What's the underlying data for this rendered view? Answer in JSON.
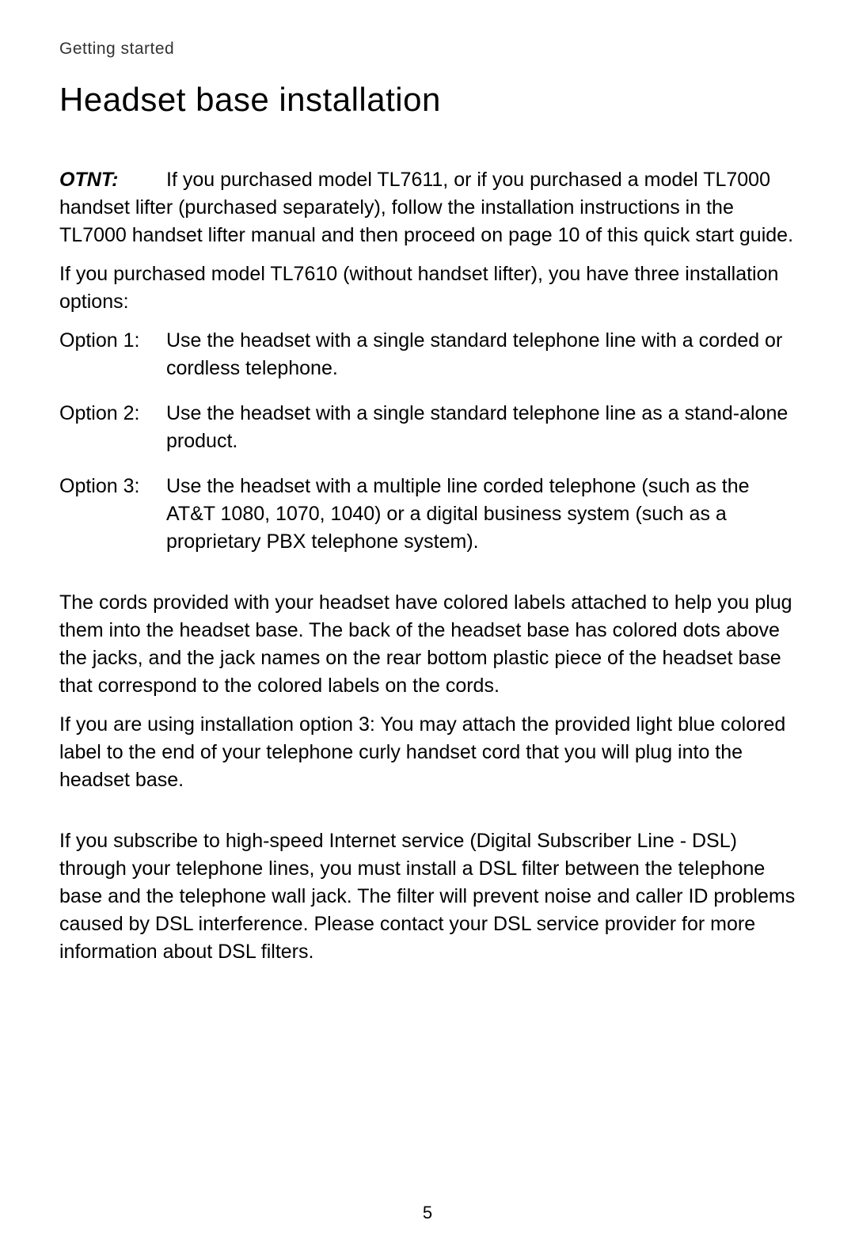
{
  "breadcrumb": "Getting started",
  "title": "Headset base installation",
  "note": {
    "label": "OTNT:",
    "text": "If you purchased model TL7611, or if you purchased a model TL7000 handset lifter (purchased separately), follow the installation instructions in the TL7000 handset lifter manual and then proceed on page 10 of this quick start guide."
  },
  "intro_paragraph": "If you purchased model TL7610 (without handset lifter), you have three installation options:",
  "options": [
    {
      "label": "Option 1:",
      "text": "Use the headset with a single standard telephone line with a corded or cordless telephone."
    },
    {
      "label": "Option 2:",
      "text": "Use the headset with a single standard telephone line as a stand-alone product."
    },
    {
      "label": "Option 3:",
      "text": "Use the headset with a multiple line corded telephone (such as the AT&T 1080, 1070, 1040) or a digital business system (such as a proprietary PBX telephone system)."
    }
  ],
  "cords_paragraph": "The cords provided with your headset have colored labels attached to help you plug them into the headset base. The back of the headset base has colored dots above the jacks, and the jack names on the rear bottom plastic piece of the headset base that correspond to the colored labels on the cords.",
  "option3_paragraph": "If you are using installation option 3: You may attach the provided light blue colored label to the end of your telephone curly handset cord that you will plug into the headset base.",
  "dsl_paragraph": "If you subscribe to high-speed Internet service (Digital Subscriber Line - DSL) through your telephone lines, you must install a DSL filter between the telephone base and the telephone wall jack. The filter will prevent noise and caller ID problems caused by DSL interference. Please contact your DSL service provider for more information about DSL filters.",
  "page_number": "5"
}
